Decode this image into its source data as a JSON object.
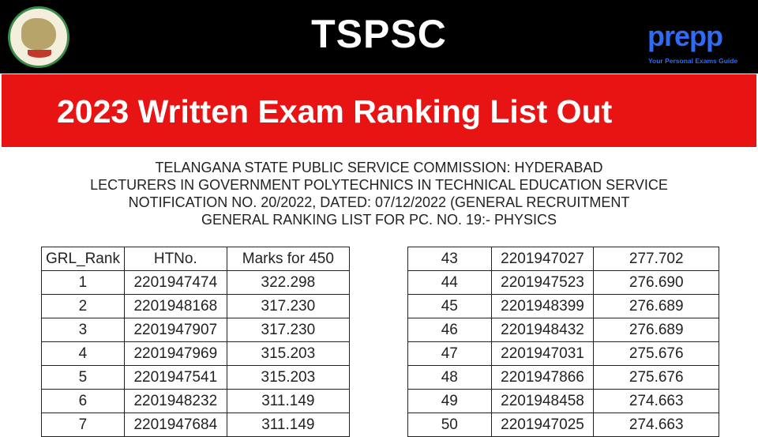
{
  "header": {
    "brand": "TSPSC",
    "logo_text": "TELANGANA STATE PUBLIC SERVICE COMMISSION",
    "prepp_logo": "prepp",
    "prepp_tagline": "Your Personal Exams Guide",
    "colors": {
      "top": "#000000",
      "band": "#e81414",
      "prepp": "#2f6bf5"
    }
  },
  "banner": {
    "headline": "2023 Written Exam Ranking List Out"
  },
  "document": {
    "lines": [
      "TELANGANA STATE PUBLIC SERVICE COMMISSION: HYDERABAD",
      "LECTURERS IN GOVERNMENT POLYTECHNICS IN TECHNICAL EDUCATION SERVICE",
      "NOTIFICATION NO. 20/2022, DATED: 07/12/2022 (GENERAL RECRUITMENT",
      "GENERAL RANKING LIST FOR PC. NO. 19:- PHYSICS"
    ],
    "left_table": {
      "headers": [
        "GRL_Rank",
        "HTNo.",
        "Marks for 450"
      ],
      "rows": [
        [
          "1",
          "2201947474",
          "322.298"
        ],
        [
          "2",
          "2201948168",
          "317.230"
        ],
        [
          "3",
          "2201947907",
          "317.230"
        ],
        [
          "4",
          "2201947969",
          "315.203"
        ],
        [
          "5",
          "2201947541",
          "315.203"
        ],
        [
          "6",
          "2201948232",
          "311.149"
        ],
        [
          "7",
          "2201947684",
          "311.149"
        ]
      ]
    },
    "right_table": {
      "rows": [
        [
          "43",
          "2201947027",
          "277.702"
        ],
        [
          "44",
          "2201947523",
          "276.690"
        ],
        [
          "45",
          "2201948399",
          "276.689"
        ],
        [
          "46",
          "2201948432",
          "276.689"
        ],
        [
          "47",
          "2201947031",
          "275.676"
        ],
        [
          "48",
          "2201947866",
          "275.676"
        ],
        [
          "49",
          "2201948458",
          "274.663"
        ],
        [
          "50",
          "2201947025",
          "274.663"
        ]
      ]
    }
  }
}
